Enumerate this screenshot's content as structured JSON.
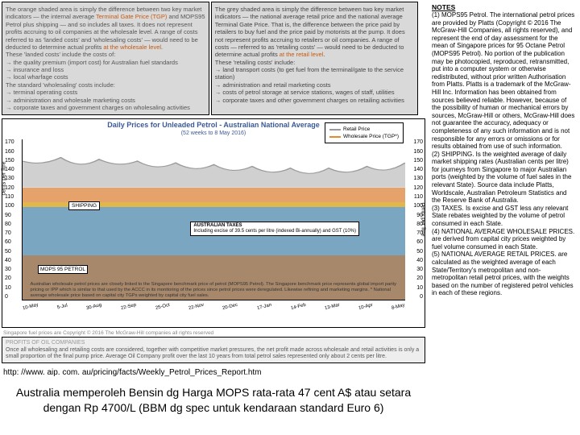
{
  "top_left_box": {
    "line1_prefix": "The orange shaded area is simply the difference between two key market indicators — the internal average ",
    "line1_hl": "Terminal Gate Price (TGP)",
    "line1_suffix": " and MOPS95 Petrol plus shipping — and so includes all taxes. It does not represent profits accruing to oil companies at the wholesale level. A range of costs referred to as 'landed costs' and 'wholesaling costs' — would need to be deducted to determine actual profits ",
    "line1_hl2": "at the wholesale level",
    "line2": "These 'landed costs' include the costs of:",
    "bullets1": "→ the quality premium (import cost) for Australian fuel standards\n→ insurance and loss\n→ local wharfage costs",
    "line3": "The standard 'wholesaling' costs include:",
    "bullets2": "→ terminal operating costs\n→ administration and wholesale marketing costs\n→ corporate taxes and government charges on wholesaling activities"
  },
  "top_right_box": {
    "line1": "The grey shaded area is simply the difference between two key market indicators — the national average retail price and the national average Terminal Gate Price. That is, the difference between the price paid by retailers to buy fuel and the price paid by motorists at the pump. It does not represent profits accruing to retailers or oil companies. A range of costs — referred to as 'retailing costs' — would need to be deducted to determine actual profits ",
    "line1_hl": "at the retail level",
    "line2": "These 'retailing costs' include:",
    "bullets1": "→ land transport costs (to get fuel from the terminal/gate to the service station)\n→ administration and retail marketing costs\n→ costs of petrol storage at service stations, wages of staff, utilities\n→ corporate taxes and other government charges on retailing activities"
  },
  "chart": {
    "title": "Daily Prices for Unleaded Petrol - Australian National Average",
    "subtitle": "(52 weeks to 8 May 2016)",
    "ylabel_left": "cents per litre",
    "ylabel_right": "cents per litre",
    "yticks": [
      "170",
      "160",
      "150",
      "140",
      "130",
      "120",
      "110",
      "100",
      "90",
      "80",
      "70",
      "60",
      "50",
      "40",
      "30",
      "20",
      "10",
      "0"
    ],
    "xticks": [
      "10-May",
      "5-Jul",
      "30-Aug",
      "22-Sep",
      "25-Oct",
      "22-Nov",
      "20-Dec",
      "17-Jan",
      "14-Feb",
      "13-Mar",
      "10-Apr",
      "8-May"
    ],
    "legend": {
      "retail": "Retail Price",
      "wholesale": "Wholesale Price (TGP*)"
    },
    "colors": {
      "retail_line": "#9a9a9a",
      "wholesale_line": "#e68a2e",
      "taxes_band": "#7aa6c2",
      "shipping_band": "#e0b74a",
      "mops_band": "#a8886b",
      "wholesale_band": "#e6a26b",
      "grid": "#cccccc"
    },
    "shipping_label": "SHIPPING",
    "taxes_label_title": "AUSTRALIAN TAXES",
    "taxes_label_sub": "Including excise of 39.5 cents per litre (indexed Bi-annually) and GST (10%)",
    "mops_label": "MOPS 95 PETROL",
    "wp_desc": "Australian wholesale petrol prices are closely linked to the Singapore benchmark price of petrol (MOPS95 Petrol). The Singapore benchmark price represents global import parity pricing or IPP which is similar to that used by the ACCC in its monitoring of the prices since petrol prices were deregulated. Likewise refining and marketing margins. * National average wholesale price based on capital city TGPs weighted by capital city fuel sales."
  },
  "copyright": "Singapore fuel prices are Copyright © 2016 The McGraw-Hill companies all rights reserved",
  "profits": {
    "title": "PROFITS OF OIL COMPANIES",
    "body": "Once all wholesaling and retailing costs are considered, together with competitive market pressures, the net profit made across wholesale and retail activities is only a small proportion of the final pump price. Average Oil Company profit over the last 10 years from total petrol sales represented only about 2 cents per litre."
  },
  "url": "http: //www. aip. com. au/pricing/facts/Weekly_Petrol_Prices_Report.htm",
  "main_text": "Australia memperoleh Bensin dg Harga MOPS rata-rata 47 cent A$ atau setara dengan Rp 4700/L (BBM dg spec untuk kendaraan standard Euro 6)",
  "notes": {
    "title": "NOTES",
    "n1": "(1) MOPS95 Petrol. The international petrol prices are provided by Platts (Copyright © 2016 The McGraw-Hill Companies, all rights reserved), and represent the end of day assessment for the mean of Singapore prices for 95 Octane Petrol (MOPS95 Petrol). No portion of the publication may be photocopied, reproduced, retransmitted, put into a computer system or otherwise redistributed, without prior written Authorisation from Platts. Platts is a trademark of the McGraw-Hill Inc. Information has been obtained from sources believed reliable. However, because of the possibility of human or mechanical errors by sources, McGraw-Hill or others, McGraw-Hill does not guarantee the accuracy, adequacy or completeness of any such information and is not responsible for any errors or omissions or for results obtained from use of such information.",
    "n2": "(2) SHIPPING. Is the weighted average of daily market shipping rates (Australian cents per litre) for journeys from Singapore to major Australian ports (weighted by the volume of fuel sales in the relevant State). Source data include Platts, Worldscale, Australian Petroleum Statistics and the Reserve Bank of Australia.",
    "n3": "(3) TAXES. Is excise and GST less any relevant State rebates weighted by the volume of petrol consumed in each State.",
    "n4": "(4) NATIONAL AVERAGE WHOLESALE PRICES. are derived from capital city prices weighted by fuel volume consumed in each State.",
    "n5": "(5) NATIONAL AVERAGE RETAIL PRICES. are calculated as the weighted average of each State/Territory's metropolitan and non-metropolitan retail petrol prices, with the weights based on the number of registered petrol vehicles in each of these regions."
  }
}
